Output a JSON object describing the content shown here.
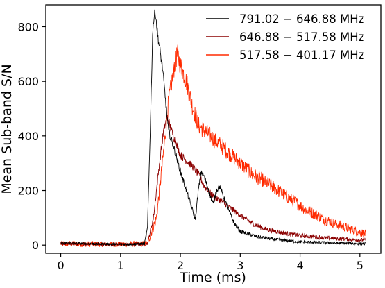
{
  "chart_data": {
    "type": "line",
    "xlabel": "Time (ms)",
    "ylabel": "Mean Sub-band S/N",
    "xlim": [
      -0.25,
      5.35
    ],
    "ylim": [
      -30,
      880
    ],
    "xticks": [
      0,
      1,
      2,
      3,
      4,
      5
    ],
    "yticks": [
      0,
      200,
      400,
      600,
      800
    ],
    "grid": false,
    "legend_position": "top-right",
    "series": [
      {
        "name": "791.02 − 646.88 MHz",
        "color": "#000000",
        "noise": 6,
        "points": [
          [
            0.0,
            8
          ],
          [
            0.5,
            5
          ],
          [
            1.0,
            3
          ],
          [
            1.4,
            5
          ],
          [
            1.45,
            60
          ],
          [
            1.5,
            450
          ],
          [
            1.54,
            800
          ],
          [
            1.58,
            860
          ],
          [
            1.62,
            770
          ],
          [
            1.7,
            650
          ],
          [
            1.8,
            420
          ],
          [
            1.9,
            350
          ],
          [
            2.0,
            270
          ],
          [
            2.1,
            200
          ],
          [
            2.2,
            130
          ],
          [
            2.25,
            95
          ],
          [
            2.3,
            200
          ],
          [
            2.35,
            270
          ],
          [
            2.4,
            250
          ],
          [
            2.5,
            180
          ],
          [
            2.55,
            150
          ],
          [
            2.6,
            200
          ],
          [
            2.65,
            215
          ],
          [
            2.7,
            190
          ],
          [
            2.8,
            130
          ],
          [
            2.9,
            80
          ],
          [
            3.0,
            50
          ],
          [
            3.3,
            30
          ],
          [
            3.6,
            20
          ],
          [
            4.0,
            12
          ],
          [
            4.5,
            8
          ],
          [
            5.1,
            5
          ]
        ]
      },
      {
        "name": "646.88 − 517.58 MHz",
        "color": "#8b0000",
        "noise": 7,
        "points": [
          [
            0.0,
            5
          ],
          [
            0.5,
            4
          ],
          [
            1.0,
            3
          ],
          [
            1.45,
            5
          ],
          [
            1.55,
            100
          ],
          [
            1.65,
            300
          ],
          [
            1.72,
            420
          ],
          [
            1.78,
            470
          ],
          [
            1.85,
            420
          ],
          [
            2.0,
            330
          ],
          [
            2.1,
            310
          ],
          [
            2.2,
            290
          ],
          [
            2.3,
            260
          ],
          [
            2.4,
            215
          ],
          [
            2.5,
            190
          ],
          [
            2.6,
            170
          ],
          [
            2.7,
            160
          ],
          [
            2.8,
            140
          ],
          [
            3.0,
            110
          ],
          [
            3.2,
            80
          ],
          [
            3.4,
            60
          ],
          [
            3.7,
            45
          ],
          [
            4.0,
            35
          ],
          [
            4.5,
            25
          ],
          [
            5.1,
            18
          ]
        ]
      },
      {
        "name": "517.58 − 401.17 MHz",
        "color": "#ff2a00",
        "noise": 14,
        "points": [
          [
            0.0,
            5
          ],
          [
            0.5,
            4
          ],
          [
            1.0,
            3
          ],
          [
            1.45,
            5
          ],
          [
            1.6,
            100
          ],
          [
            1.7,
            300
          ],
          [
            1.8,
            520
          ],
          [
            1.9,
            660
          ],
          [
            1.95,
            700
          ],
          [
            2.0,
            660
          ],
          [
            2.1,
            600
          ],
          [
            2.2,
            510
          ],
          [
            2.3,
            440
          ],
          [
            2.4,
            420
          ],
          [
            2.6,
            380
          ],
          [
            2.8,
            340
          ],
          [
            3.0,
            300
          ],
          [
            3.2,
            260
          ],
          [
            3.5,
            220
          ],
          [
            3.8,
            175
          ],
          [
            4.1,
            130
          ],
          [
            4.4,
            95
          ],
          [
            4.7,
            70
          ],
          [
            5.1,
            40
          ]
        ]
      }
    ]
  }
}
